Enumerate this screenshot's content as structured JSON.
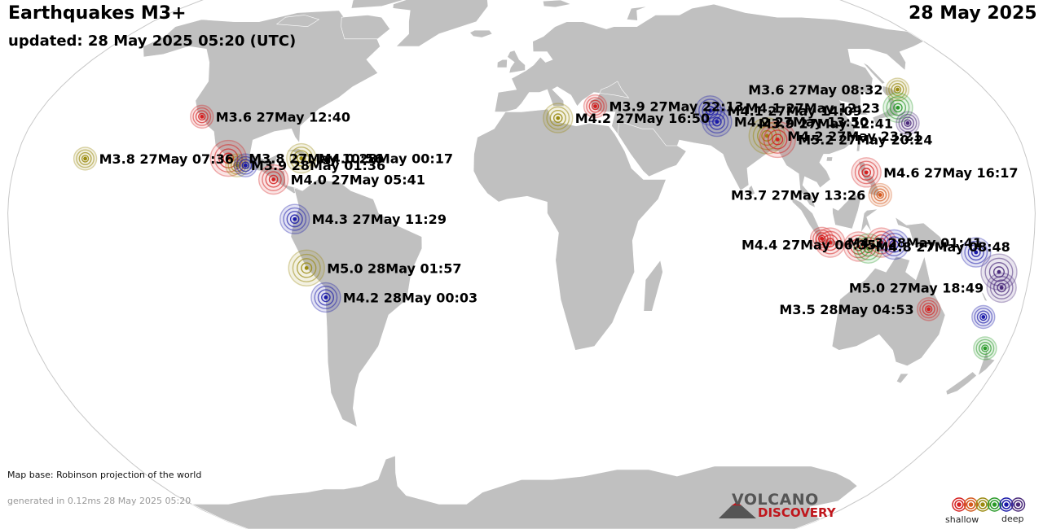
{
  "header": {
    "title": "Earthquakes M3+",
    "updated": "updated: 28 May 2025 05:20 (UTC)",
    "date": "28 May 2025"
  },
  "footer": {
    "map_base": "Map base: Robinson projection of the world",
    "generated": "generated in 0.12ms 28 May 2025 05:20",
    "logo_top": "VOLCANO",
    "logo_bottom": "DISCOVERY"
  },
  "legend": {
    "shallow": "shallow",
    "deep": "deep",
    "colors": [
      "#d42020",
      "#d4581c",
      "#9a8a10",
      "#2a9a2a",
      "#1a1aa8",
      "#4a2a7a"
    ]
  },
  "colors": {
    "land": "#c0c0c0",
    "ocean": "#ffffff",
    "border": "#ffffff"
  },
  "quakes": [
    {
      "label": "M3.6 27May 08:32",
      "color": "#9a8a10",
      "lon": 146.2,
      "lat": 44.0,
      "size": 14
    },
    {
      "label": "M3.9 27May 22:13",
      "color": "#d42020",
      "lon": 27.8,
      "lat": 38.0,
      "size": 14
    },
    {
      "label": "M4.1 27May 14:09",
      "color": "#1a1aa8",
      "lon": 70.6,
      "lat": 36.5,
      "size": 18
    },
    {
      "label": "M4.1 27May 12:23",
      "color": "#2a9a2a",
      "lon": 141.5,
      "lat": 37.5,
      "size": 18
    },
    {
      "label": "M4.2 27May 16:50",
      "color": "#9a8a10",
      "lon": 13.5,
      "lat": 33.8,
      "size": 18
    },
    {
      "label": "M4.2 27May 13:50",
      "color": "#1a1aa8",
      "lon": 72.0,
      "lat": 32.5,
      "size": 18
    },
    {
      "label": "M3.9 27May 12:41",
      "color": "#4a2a7a",
      "lon": 142.0,
      "lat": 32.0,
      "size": 14
    },
    {
      "label": "M3.6 27May 12:40",
      "color": "#d42020",
      "lon": -118.5,
      "lat": 34.3,
      "size": 14
    },
    {
      "label": "M4.2 27May 23:21",
      "color": "#9a8a10",
      "lon": 89.0,
      "lat": 27.5,
      "size": 22
    },
    {
      "label": "M5.2 27May 20:24",
      "color": "#d42020",
      "lon": 92.5,
      "lat": 26.2,
      "size": 22
    },
    {
      "label": "M3.8 27May 07:36",
      "color": "#9a8a10",
      "lon": -155.5,
      "lat": 19.4,
      "size": 14
    },
    {
      "label": "M3.8 27May 10:56",
      "color": "#d42020",
      "lon": -104.5,
      "lat": 19.5,
      "size": 22
    },
    {
      "label": "M3.9 28May 01:36",
      "color": "#9a8a10",
      "lon": -101.0,
      "lat": 17.0,
      "size": 14
    },
    {
      "label": "",
      "color": "#1a1aa8",
      "lon": -98.0,
      "lat": 17.0,
      "size": 14
    },
    {
      "label": "M4.0 28May 00:17",
      "color": "#9a8a10",
      "lon": -78.5,
      "lat": 19.5,
      "size": 18
    },
    {
      "label": "M4.6 27May 16:17",
      "color": "#d42020",
      "lon": 122.0,
      "lat": 14.5,
      "size": 18
    },
    {
      "label": "M4.0 27May 05:41",
      "color": "#d42020",
      "lon": -87.5,
      "lat": 12.0,
      "size": 18
    },
    {
      "label": "M3.7 27May 13:26",
      "color": "#d4581c",
      "lon": 126.0,
      "lat": 6.5,
      "size": 14
    },
    {
      "label": "M4.3 27May 11:29",
      "color": "#1a1aa8",
      "lon": -79.5,
      "lat": -1.5,
      "size": 18
    },
    {
      "label": "M4.3 28May 01:41",
      "color": "#d42020",
      "lon": 108.5,
      "lat": -7.5,
      "size": 18
    },
    {
      "label": "",
      "color": "#d42020",
      "lon": 105.5,
      "lat": -6.5,
      "size": 14
    },
    {
      "label": "M4.8 27May 08:48",
      "color": "#d42020",
      "lon": 118.5,
      "lat": -8.5,
      "size": 18
    },
    {
      "label": "",
      "color": "#2a9a2a",
      "lon": 122.0,
      "lat": -9.0,
      "size": 18
    },
    {
      "label": "",
      "color": "#d42020",
      "lon": 126.5,
      "lat": -7.5,
      "size": 18
    },
    {
      "label": "M4.4 27May 06:35",
      "color": "#1a1aa8",
      "lon": 131.0,
      "lat": -8.0,
      "size": 18
    },
    {
      "label": "M5.0 28May 01:57",
      "color": "#9a8a10",
      "lon": -76.0,
      "lat": -14.0,
      "size": 22
    },
    {
      "label": "M4.2 28May 00:03",
      "color": "#1a1aa8",
      "lon": -70.0,
      "lat": -21.5,
      "size": 18
    },
    {
      "label": "",
      "color": "#1a1aa8",
      "lon": 160.0,
      "lat": -10.0,
      "size": 18
    },
    {
      "label": "",
      "color": "#4a2a7a",
      "lon": 169.0,
      "lat": -15.0,
      "size": 22
    },
    {
      "label": "M5.0 27May 18:49",
      "color": "#4a2a7a",
      "lon": 171.0,
      "lat": -19.0,
      "size": 18
    },
    {
      "label": "M3.5 28May 04:53",
      "color": "#d42020",
      "lon": 146.5,
      "lat": -24.5,
      "size": 14
    },
    {
      "label": "",
      "color": "#1a1aa8",
      "lon": 167.0,
      "lat": -26.5,
      "size": 14
    },
    {
      "label": "",
      "color": "#2a9a2a",
      "lon": 172.0,
      "lat": -34.5,
      "size": 14
    }
  ]
}
